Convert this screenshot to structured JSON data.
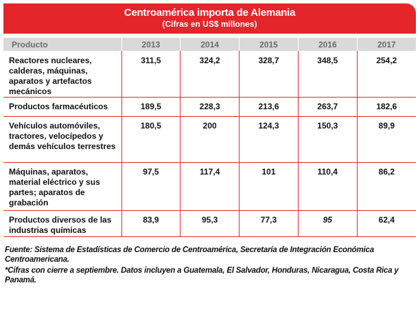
{
  "header": {
    "title": "Centroamérica importa de Alemania",
    "subtitle": "(Cifras en US$ millones)",
    "accent_color": "#e4262b"
  },
  "table": {
    "columns": [
      "Producto",
      "2013",
      "2014",
      "2015",
      "2016",
      "2017"
    ],
    "rows": [
      {
        "product": "Reactores nucleares, calderas, máquinas, aparatos y artefactos mecánicos",
        "values": [
          "311,5",
          "324,2",
          "328,7",
          "348,5",
          "254,2"
        ]
      },
      {
        "product": "Productos farmacéuticos",
        "values": [
          "189,5",
          "228,3",
          "213,6",
          "263,7",
          "182,6"
        ]
      },
      {
        "product": "Vehículos automóviles, tractores, velocípedos y demás vehículos terrestres",
        "values": [
          "180,5",
          "200",
          "124,3",
          "150,3",
          "89,9"
        ]
      },
      {
        "product": "Máquinas, aparatos, material eléctrico y sus partes; aparatos de grabación",
        "values": [
          "97,5",
          "117,4",
          "101",
          "110,4",
          "86,2"
        ]
      },
      {
        "product": "Productos diversos de las industrias químicas",
        "values": [
          "83,9",
          "95,3",
          "77,3",
          "95",
          "62,4"
        ]
      }
    ]
  },
  "footer": {
    "source": "Fuente: Sistema de Estadísticas de Comercio de Centroamérica, Secretaría de Integración Económica Centroamericana.",
    "note": "*Cifras con cierre a septiembre. Datos incluyen a Guatemala, El Salvador, Honduras, Nicaragua, Costa Rica y Panamá."
  }
}
